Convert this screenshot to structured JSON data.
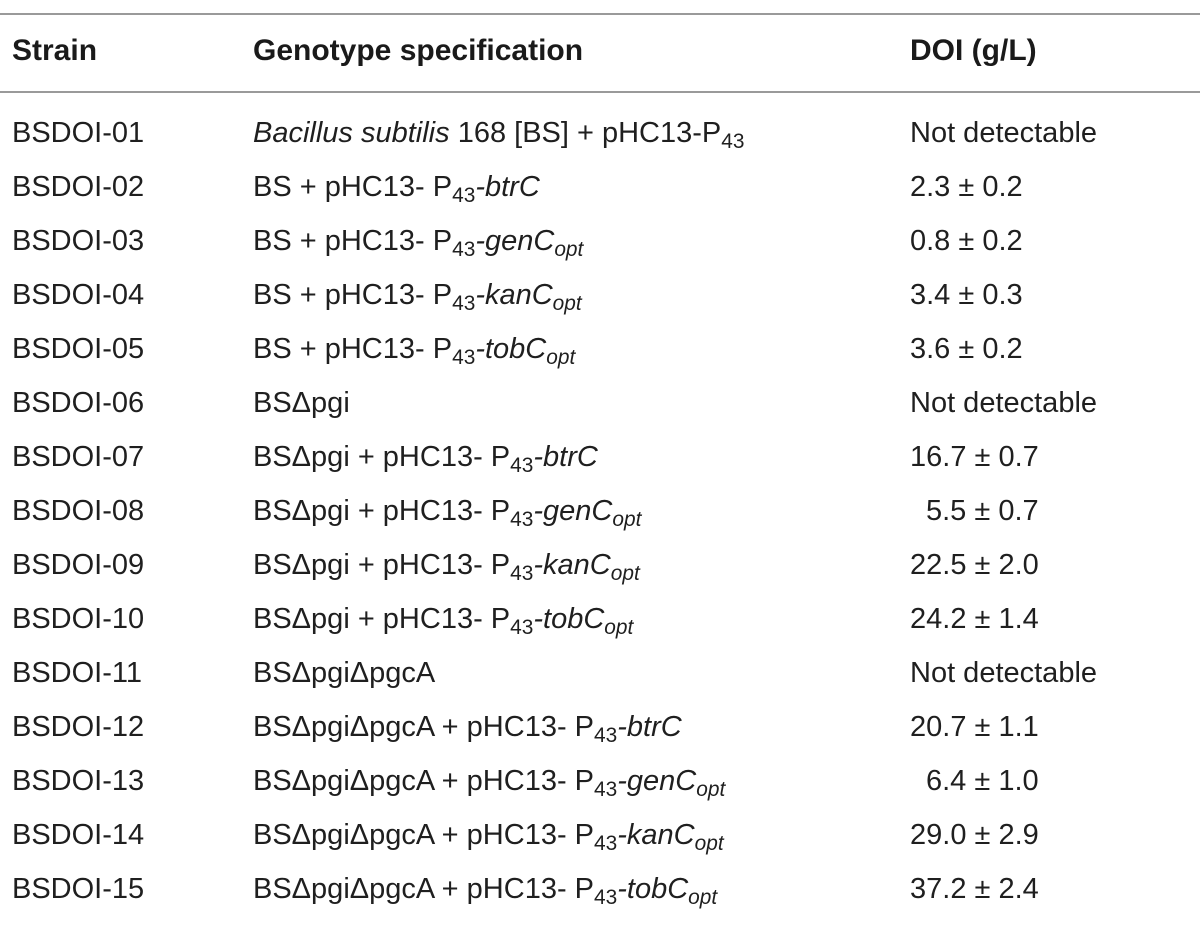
{
  "table": {
    "headers": {
      "strain": "Strain",
      "genotype": "Genotype specification",
      "doi": "DOI (g/L)"
    },
    "rows": [
      {
        "strain": "BSDOI-01",
        "geno_base": "",
        "geno_italic_lead": "Bacillus subtilis",
        "geno_middle": " 168 [BS] + pHC13-P",
        "p_sub": "43",
        "gene": "",
        "gene_sub": "",
        "doi": "Not detectable",
        "doi_indent": false
      },
      {
        "strain": "BSDOI-02",
        "geno_base": "BS + pHC13- P",
        "geno_italic_lead": "",
        "geno_middle": "",
        "p_sub": "43",
        "gene": "-btrC",
        "gene_sub": "",
        "doi": "2.3 ± 0.2",
        "doi_indent": false
      },
      {
        "strain": "BSDOI-03",
        "geno_base": "BS + pHC13- P",
        "geno_italic_lead": "",
        "geno_middle": "",
        "p_sub": "43",
        "gene": "-genC",
        "gene_sub": "opt",
        "doi": "0.8 ± 0.2",
        "doi_indent": false
      },
      {
        "strain": "BSDOI-04",
        "geno_base": "BS + pHC13- P",
        "geno_italic_lead": "",
        "geno_middle": "",
        "p_sub": "43",
        "gene": "-kanC",
        "gene_sub": "opt",
        "doi": "3.4 ± 0.3",
        "doi_indent": false
      },
      {
        "strain": "BSDOI-05",
        "geno_base": "BS + pHC13- P",
        "geno_italic_lead": "",
        "geno_middle": "",
        "p_sub": "43",
        "gene": "-tobC",
        "gene_sub": "opt",
        "doi": "3.6 ± 0.2",
        "doi_indent": false
      },
      {
        "strain": "BSDOI-06",
        "geno_base": "BSΔpgi",
        "geno_italic_lead": "",
        "geno_middle": "",
        "p_sub": "",
        "gene": "",
        "gene_sub": "",
        "doi": "Not detectable",
        "doi_indent": false
      },
      {
        "strain": "BSDOI-07",
        "geno_base": "BSΔpgi + pHC13- P",
        "geno_italic_lead": "",
        "geno_middle": "",
        "p_sub": "43",
        "gene": "-btrC",
        "gene_sub": "",
        "doi": "16.7 ± 0.7",
        "doi_indent": false
      },
      {
        "strain": "BSDOI-08",
        "geno_base": "BSΔpgi + pHC13- P",
        "geno_italic_lead": "",
        "geno_middle": "",
        "p_sub": "43",
        "gene": "-genC",
        "gene_sub": "opt",
        "doi": "5.5 ± 0.7",
        "doi_indent": true
      },
      {
        "strain": "BSDOI-09",
        "geno_base": "BSΔpgi + pHC13- P",
        "geno_italic_lead": "",
        "geno_middle": "",
        "p_sub": "43",
        "gene": "-kanC",
        "gene_sub": "opt",
        "doi": "22.5 ± 2.0",
        "doi_indent": false
      },
      {
        "strain": "BSDOI-10",
        "geno_base": "BSΔpgi + pHC13- P",
        "geno_italic_lead": "",
        "geno_middle": "",
        "p_sub": "43",
        "gene": "-tobC",
        "gene_sub": "opt",
        "doi": "24.2 ± 1.4",
        "doi_indent": false
      },
      {
        "strain": "BSDOI-11",
        "geno_base": "BSΔpgiΔpgcA",
        "geno_italic_lead": "",
        "geno_middle": "",
        "p_sub": "",
        "gene": "",
        "gene_sub": "",
        "doi": "Not detectable",
        "doi_indent": false
      },
      {
        "strain": "BSDOI-12",
        "geno_base": "BSΔpgiΔpgcA + pHC13- P",
        "geno_italic_lead": "",
        "geno_middle": "",
        "p_sub": "43",
        "gene": "-btrC",
        "gene_sub": "",
        "doi": "20.7 ± 1.1",
        "doi_indent": false
      },
      {
        "strain": "BSDOI-13",
        "geno_base": "BSΔpgiΔpgcA + pHC13- P",
        "geno_italic_lead": "",
        "geno_middle": "",
        "p_sub": "43",
        "gene": "-genC",
        "gene_sub": "opt",
        "doi": "6.4 ± 1.0",
        "doi_indent": true
      },
      {
        "strain": "BSDOI-14",
        "geno_base": "BSΔpgiΔpgcA + pHC13- P",
        "geno_italic_lead": "",
        "geno_middle": "",
        "p_sub": "43",
        "gene": "-kanC",
        "gene_sub": "opt",
        "doi": "29.0 ± 2.9",
        "doi_indent": false
      },
      {
        "strain": "BSDOI-15",
        "geno_base": "BSΔpgiΔpgcA + pHC13- P",
        "geno_italic_lead": "",
        "geno_middle": "",
        "p_sub": "43",
        "gene": "-tobC",
        "gene_sub": "opt",
        "doi": "37.2 ± 2.4",
        "doi_indent": false
      }
    ]
  }
}
